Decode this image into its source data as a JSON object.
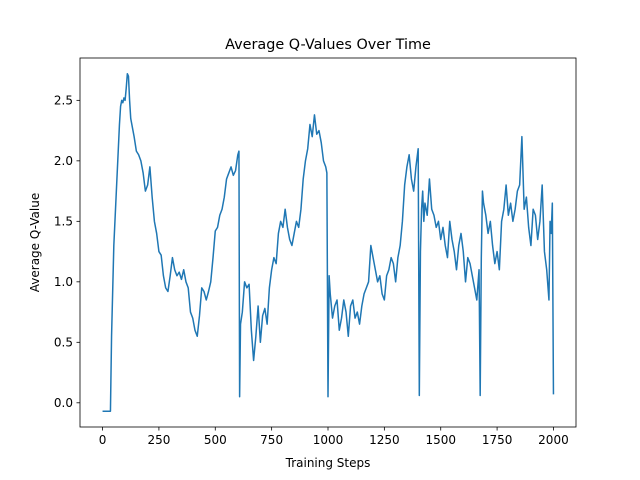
{
  "chart_data": {
    "type": "line",
    "title": "Average Q-Values Over Time",
    "xlabel": "Training Steps",
    "ylabel": "Average Q-Value",
    "xlim": [
      -100,
      2100
    ],
    "ylim": [
      -0.2,
      2.85
    ],
    "xticks": [
      0,
      250,
      500,
      750,
      1000,
      1250,
      1500,
      1750,
      2000
    ],
    "yticks": [
      0.0,
      0.5,
      1.0,
      1.5,
      2.0,
      2.5
    ],
    "xtick_labels": [
      "0",
      "250",
      "500",
      "750",
      "1000",
      "1250",
      "1500",
      "1750",
      "2000"
    ],
    "ytick_labels": [
      "0.0",
      "0.5",
      "1.0",
      "1.5",
      "2.0",
      "2.5"
    ],
    "grid": false,
    "series": [
      {
        "color": "#1f77b4",
        "x": [
          0,
          10,
          20,
          30,
          35,
          40,
          50,
          60,
          70,
          75,
          80,
          85,
          90,
          95,
          100,
          105,
          110,
          115,
          120,
          125,
          130,
          140,
          150,
          160,
          170,
          180,
          190,
          200,
          210,
          220,
          230,
          240,
          250,
          260,
          270,
          280,
          290,
          300,
          310,
          320,
          330,
          340,
          350,
          360,
          370,
          380,
          390,
          400,
          410,
          420,
          430,
          440,
          450,
          460,
          470,
          480,
          490,
          500,
          510,
          520,
          530,
          540,
          550,
          560,
          570,
          580,
          590,
          600,
          605,
          608,
          612,
          620,
          630,
          640,
          650,
          660,
          670,
          680,
          690,
          700,
          710,
          720,
          730,
          740,
          750,
          760,
          770,
          780,
          790,
          800,
          810,
          820,
          830,
          840,
          850,
          860,
          870,
          880,
          890,
          900,
          910,
          920,
          930,
          940,
          950,
          960,
          970,
          980,
          990,
          995,
          1000,
          1005,
          1010,
          1020,
          1030,
          1040,
          1050,
          1060,
          1070,
          1080,
          1090,
          1100,
          1110,
          1120,
          1130,
          1140,
          1150,
          1160,
          1170,
          1180,
          1190,
          1200,
          1210,
          1220,
          1230,
          1240,
          1250,
          1260,
          1270,
          1280,
          1290,
          1300,
          1310,
          1320,
          1330,
          1340,
          1350,
          1360,
          1370,
          1380,
          1390,
          1400,
          1405,
          1410,
          1415,
          1420,
          1425,
          1430,
          1440,
          1450,
          1460,
          1470,
          1480,
          1490,
          1500,
          1510,
          1520,
          1530,
          1540,
          1550,
          1560,
          1570,
          1580,
          1590,
          1600,
          1610,
          1620,
          1630,
          1640,
          1650,
          1660,
          1670,
          1675,
          1680,
          1685,
          1690,
          1700,
          1710,
          1720,
          1730,
          1740,
          1750,
          1760,
          1770,
          1780,
          1790,
          1800,
          1810,
          1820,
          1830,
          1840,
          1850,
          1860,
          1870,
          1880,
          1890,
          1900,
          1910,
          1920,
          1930,
          1940,
          1950,
          1960,
          1970,
          1980,
          1985,
          1990,
          1995,
          2000
        ],
        "y": [
          -0.07,
          -0.07,
          -0.07,
          -0.07,
          -0.07,
          0.55,
          1.3,
          1.7,
          2.1,
          2.3,
          2.45,
          2.5,
          2.48,
          2.52,
          2.5,
          2.6,
          2.72,
          2.7,
          2.5,
          2.35,
          2.3,
          2.2,
          2.08,
          2.05,
          2.0,
          1.9,
          1.75,
          1.8,
          1.95,
          1.7,
          1.5,
          1.4,
          1.25,
          1.22,
          1.05,
          0.95,
          0.92,
          1.05,
          1.2,
          1.1,
          1.05,
          1.08,
          1.02,
          1.1,
          1.0,
          0.95,
          0.75,
          0.7,
          0.6,
          0.55,
          0.72,
          0.95,
          0.92,
          0.85,
          0.92,
          1.0,
          1.2,
          1.42,
          1.45,
          1.55,
          1.6,
          1.7,
          1.85,
          1.9,
          1.95,
          1.88,
          1.92,
          2.05,
          2.08,
          0.05,
          0.65,
          0.75,
          1.0,
          0.95,
          0.98,
          0.6,
          0.35,
          0.55,
          0.8,
          0.5,
          0.72,
          0.78,
          0.65,
          0.95,
          1.1,
          1.2,
          1.15,
          1.4,
          1.5,
          1.45,
          1.6,
          1.45,
          1.35,
          1.3,
          1.4,
          1.5,
          1.45,
          1.6,
          1.85,
          2.0,
          2.1,
          2.3,
          2.2,
          2.38,
          2.22,
          2.25,
          2.15,
          2.0,
          1.95,
          1.9,
          0.05,
          1.05,
          0.9,
          0.7,
          0.8,
          0.85,
          0.6,
          0.7,
          0.85,
          0.75,
          0.55,
          0.8,
          0.85,
          0.7,
          0.75,
          0.65,
          0.8,
          0.9,
          0.95,
          1.0,
          1.3,
          1.2,
          1.1,
          1.0,
          1.05,
          0.9,
          0.85,
          1.05,
          1.1,
          1.2,
          1.15,
          1.0,
          1.2,
          1.3,
          1.5,
          1.8,
          1.95,
          2.05,
          1.85,
          1.75,
          1.95,
          2.1,
          0.06,
          1.25,
          1.6,
          1.75,
          1.5,
          1.65,
          1.55,
          1.85,
          1.6,
          1.55,
          1.45,
          1.5,
          1.35,
          1.45,
          1.3,
          1.2,
          1.5,
          1.35,
          1.25,
          1.1,
          1.3,
          1.4,
          1.25,
          1.0,
          1.2,
          1.15,
          1.05,
          0.95,
          0.85,
          1.1,
          0.06,
          1.2,
          1.75,
          1.65,
          1.55,
          1.4,
          1.5,
          1.3,
          1.15,
          1.25,
          1.1,
          1.5,
          1.6,
          1.8,
          1.55,
          1.65,
          1.5,
          1.6,
          1.75,
          1.8,
          2.2,
          1.6,
          1.7,
          1.45,
          1.3,
          1.6,
          1.55,
          1.35,
          1.5,
          1.8,
          1.25,
          1.1,
          0.85,
          1.5,
          1.4,
          1.65,
          0.07
        ]
      }
    ]
  }
}
